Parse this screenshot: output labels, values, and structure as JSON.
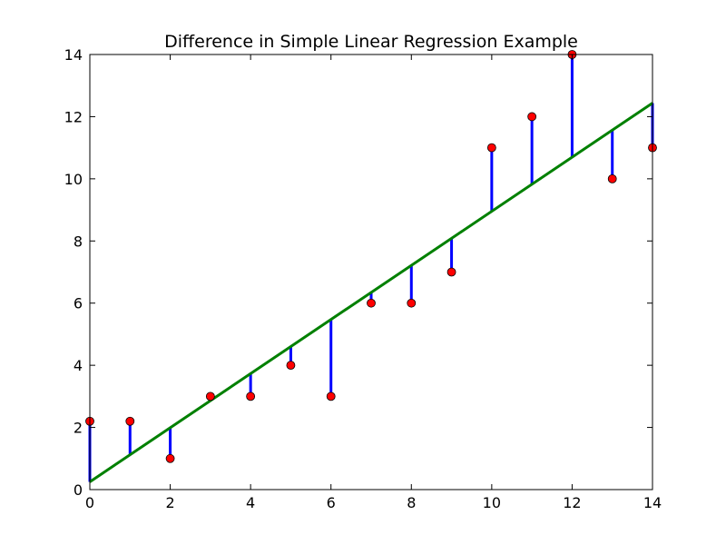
{
  "chart_data": {
    "type": "scatter",
    "title": "Difference in Simple Linear Regression Example",
    "xlabel": "",
    "ylabel": "",
    "xlim": [
      0,
      14
    ],
    "ylim": [
      0,
      14
    ],
    "xticks": [
      0,
      2,
      4,
      6,
      8,
      10,
      12,
      14
    ],
    "yticks": [
      0,
      2,
      4,
      6,
      8,
      10,
      12,
      14
    ],
    "grid": false,
    "legend": "none",
    "points": {
      "x": [
        0,
        1,
        2,
        3,
        4,
        5,
        6,
        7,
        8,
        9,
        10,
        11,
        12,
        13,
        14
      ],
      "y": [
        2.2,
        2.2,
        1,
        3,
        3,
        4,
        3,
        6,
        6,
        7,
        11,
        12,
        14,
        10,
        11
      ],
      "color": "#ff0000"
    },
    "regression_line": {
      "intercept": 0.25,
      "slope": 0.8705,
      "color": "#008000"
    },
    "residual_color": "#0000ff"
  }
}
